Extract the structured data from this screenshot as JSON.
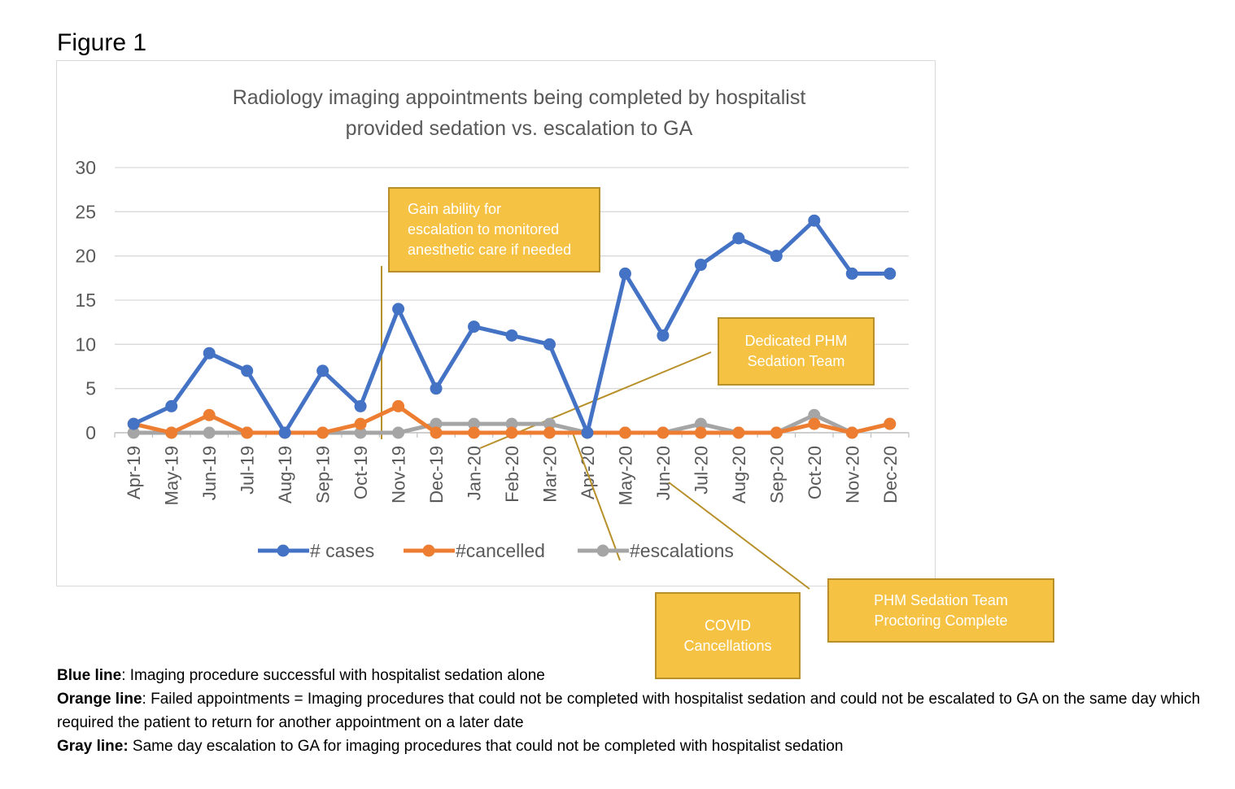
{
  "figure_label": "Figure 1",
  "chart_data": {
    "type": "line",
    "title": "Radiology imaging appointments being completed by hospitalist provided sedation vs. escalation to GA",
    "title_lines": [
      "Radiology imaging appointments being completed by hospitalist",
      "provided sedation vs. escalation to GA"
    ],
    "categories": [
      "Apr-19",
      "May-19",
      "Jun-19",
      "Jul-19",
      "Aug-19",
      "Sep-19",
      "Oct-19",
      "Nov-19",
      "Dec-19",
      "Jan-20",
      "Feb-20",
      "Mar-20",
      "Apr-20",
      "May-20",
      "Jun-20",
      "Jul-20",
      "Aug-20",
      "Sep-20",
      "Oct-20",
      "Nov-20",
      "Dec-20"
    ],
    "ylim": [
      0,
      30
    ],
    "yticks": [
      0,
      5,
      10,
      15,
      20,
      25,
      30
    ],
    "grid": true,
    "legend_position": "bottom",
    "series": [
      {
        "name": "# cases",
        "color": "#4472c4",
        "values": [
          1,
          3,
          9,
          7,
          0,
          7,
          3,
          14,
          5,
          12,
          11,
          10,
          0,
          18,
          11,
          19,
          22,
          20,
          24,
          18,
          18
        ]
      },
      {
        "name": "#cancelled",
        "color": "#ed7d31",
        "values": [
          1,
          0,
          2,
          0,
          0,
          0,
          1,
          3,
          0,
          0,
          0,
          0,
          0,
          0,
          0,
          0,
          0,
          0,
          1,
          0,
          1
        ]
      },
      {
        "name": "#escalations",
        "color": "#a5a5a5",
        "values": [
          0,
          0,
          0,
          0,
          0,
          0,
          0,
          0,
          1,
          1,
          1,
          1,
          0,
          0,
          0,
          1,
          0,
          0,
          2,
          0,
          1
        ]
      }
    ]
  },
  "callouts": [
    {
      "id": "gain",
      "text": "Gain ability for\nescalation to monitored\nanesthetic care if needed"
    },
    {
      "id": "dedicated",
      "text": "Dedicated PHM\nSedation Team"
    },
    {
      "id": "covid",
      "text": "COVID\nCancellations"
    },
    {
      "id": "proctoring",
      "text": "PHM Sedation Team\nProctoring Complete"
    }
  ],
  "notes": {
    "blue_label": "Blue line",
    "blue_text": ": Imaging procedure successful with hospitalist sedation alone",
    "orange_label": "Orange line",
    "orange_text": ": Failed appointments = Imaging procedures that could not be completed with hospitalist sedation and could not be escalated to GA on the same day which required the patient to return for another appointment on a later date",
    "gray_label": "Gray line:",
    "gray_text": " Same day escalation to GA for imaging procedures that could not be completed with hospitalist sedation"
  },
  "colors": {
    "callout_fill": "#f6c243",
    "callout_border": "#b8902a",
    "gridline": "#d9d9d9",
    "annotation_line": "#b8902a"
  }
}
